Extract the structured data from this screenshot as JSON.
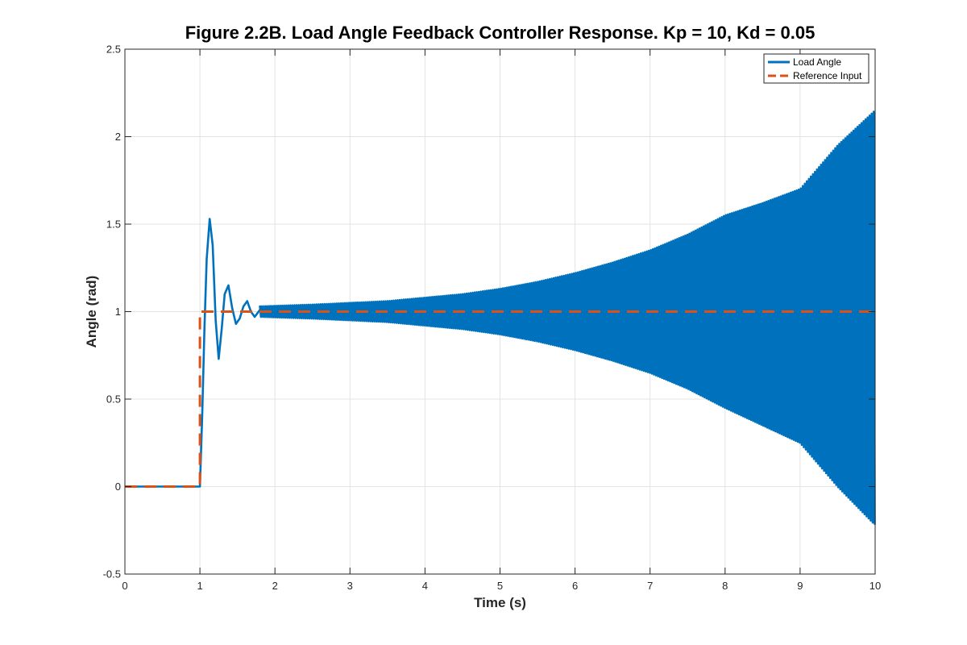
{
  "chart_data": {
    "type": "line",
    "title": "Figure 2.2B. Load Angle Feedback Controller Response. Kp = 10, Kd = 0.05",
    "xlabel": "Time (s)",
    "ylabel": "Angle (rad)",
    "xlim": [
      0,
      10
    ],
    "ylim": [
      -0.5,
      2.5
    ],
    "xticks": [
      0,
      1,
      2,
      3,
      4,
      5,
      6,
      7,
      8,
      9,
      10
    ],
    "yticks": [
      -0.5,
      0,
      0.5,
      1,
      1.5,
      2,
      2.5
    ],
    "xtick_labels": [
      "0",
      "1",
      "2",
      "3",
      "4",
      "5",
      "6",
      "7",
      "8",
      "9",
      "10"
    ],
    "ytick_labels": [
      "-0.5",
      "0",
      "0.5",
      "1",
      "1.5",
      "2",
      "2.5"
    ],
    "grid": true,
    "legend_position": "top-right",
    "series": [
      {
        "name": "Load Angle",
        "color": "#0072BD",
        "style": "solid",
        "transient": {
          "t": [
            0,
            1.0,
            1.03,
            1.06,
            1.09,
            1.13,
            1.17,
            1.21,
            1.25,
            1.29,
            1.33,
            1.38,
            1.43,
            1.48,
            1.53,
            1.58,
            1.63,
            1.68,
            1.73,
            1.8,
            1.9,
            2.0
          ],
          "y": [
            0,
            0,
            0.4,
            0.9,
            1.3,
            1.53,
            1.38,
            0.95,
            0.73,
            0.9,
            1.1,
            1.15,
            1.02,
            0.93,
            0.96,
            1.03,
            1.06,
            1.0,
            0.97,
            1.01,
            1.0,
            1.0
          ]
        },
        "oscillation_envelope": {
          "t": [
            1.8,
            2.5,
            3.0,
            3.5,
            4.0,
            4.5,
            5.0,
            5.5,
            6.0,
            6.5,
            7.0,
            7.5,
            8.0,
            8.5,
            9.0,
            9.5,
            10.0
          ],
          "upper": [
            1.03,
            1.04,
            1.05,
            1.06,
            1.08,
            1.1,
            1.13,
            1.17,
            1.22,
            1.28,
            1.35,
            1.44,
            1.55,
            1.62,
            1.7,
            1.95,
            2.15
          ],
          "lower": [
            0.97,
            0.96,
            0.95,
            0.94,
            0.92,
            0.9,
            0.87,
            0.83,
            0.78,
            0.72,
            0.65,
            0.56,
            0.45,
            0.35,
            0.25,
            0.0,
            -0.22
          ]
        }
      },
      {
        "name": "Reference Input",
        "color": "#D95319",
        "style": "dashed",
        "t": [
          0,
          1,
          1,
          10
        ],
        "y": [
          0,
          0,
          1,
          1
        ]
      }
    ]
  }
}
